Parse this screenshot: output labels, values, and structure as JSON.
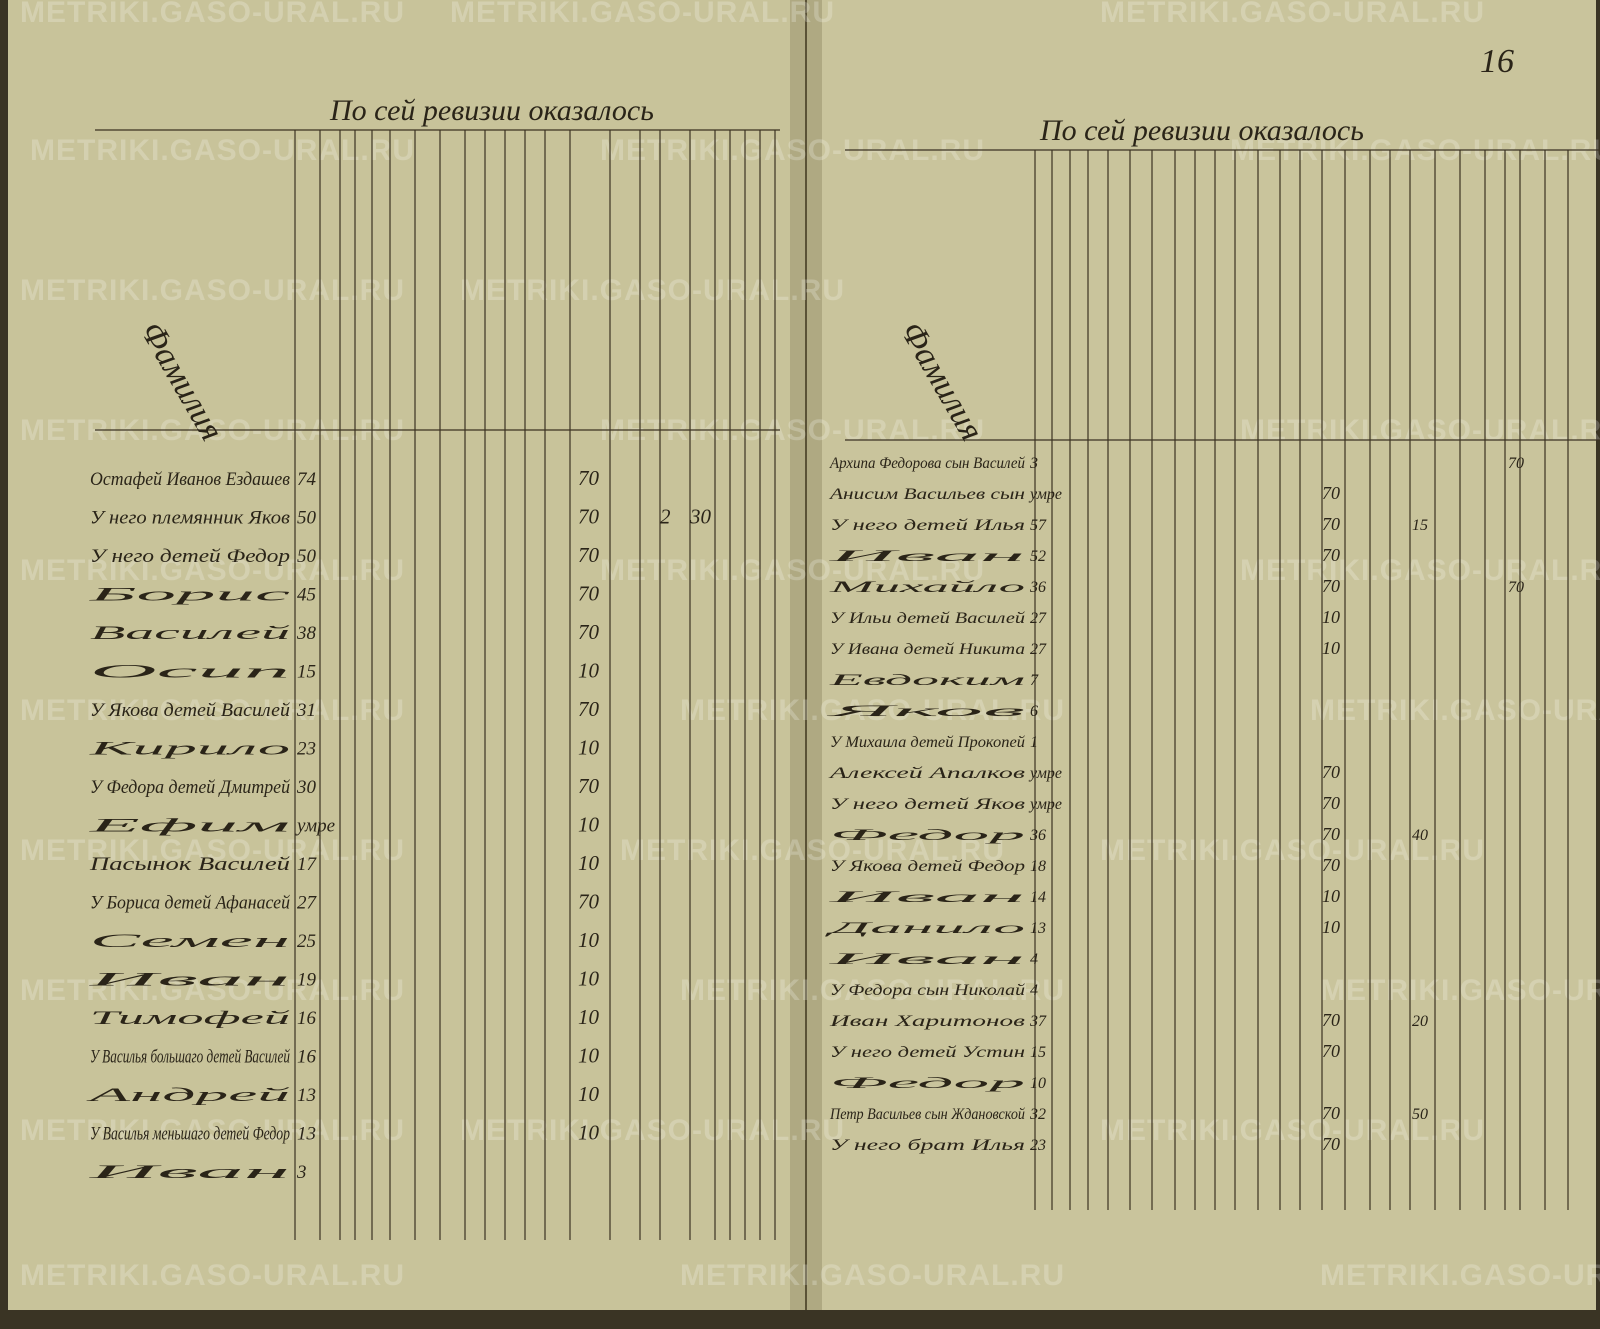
{
  "watermark": "METRIKI.GASO-URAL.RU",
  "page_number": "16",
  "left_page": {
    "title": "По сей ревизии оказалось",
    "name_header": "Фамилия",
    "rows": [
      {
        "name": "Остафей Иванов Ездашев",
        "age": "74",
        "tax": "70"
      },
      {
        "name": "У него племянник Яков",
        "age": "50",
        "tax": "70",
        "extra": [
          "2",
          "30"
        ]
      },
      {
        "name": "У него детей Федор",
        "age": "50",
        "tax": "70"
      },
      {
        "name": "Борис",
        "age": "45",
        "tax": "70"
      },
      {
        "name": "Василей",
        "age": "38",
        "tax": "70"
      },
      {
        "name": "Осип",
        "age": "15",
        "tax": "10"
      },
      {
        "name": "У Якова детей Василей",
        "age": "31",
        "tax": "70"
      },
      {
        "name": "Кирило",
        "age": "23",
        "tax": "10"
      },
      {
        "name": "У Федора детей Дмитрей",
        "age": "30",
        "tax": "70"
      },
      {
        "name": "Ефим",
        "age": "умре",
        "tax": "10"
      },
      {
        "name": "Пасынок Василей",
        "age": "17",
        "tax": "10"
      },
      {
        "name": "У Бориса детей Афанасей",
        "age": "27",
        "tax": "70"
      },
      {
        "name": "Семен",
        "age": "25",
        "tax": "10"
      },
      {
        "name": "Иван",
        "age": "19",
        "tax": "10"
      },
      {
        "name": "Тимофей",
        "age": "16",
        "tax": "10"
      },
      {
        "name": "У Василья большаго детей Василей",
        "age": "16",
        "tax": "10"
      },
      {
        "name": "Андрей",
        "age": "13",
        "tax": "10"
      },
      {
        "name": "У Василья меньшаго детей Федор",
        "age": "13",
        "tax": "10"
      },
      {
        "name": "Иван",
        "age": "3"
      }
    ]
  },
  "right_page": {
    "title": "По сей ревизии оказалось",
    "name_header": "Фамилия",
    "rows": [
      {
        "name": "Архипа Федорова сын Василей",
        "age": "3",
        "far": "70"
      },
      {
        "name": "Анисим Васильев сын",
        "age": "умре",
        "tax": "70"
      },
      {
        "name": "У него детей Илья",
        "age": "57",
        "tax": "70",
        "extra": "15"
      },
      {
        "name": "Иван",
        "age": "52",
        "tax": "70"
      },
      {
        "name": "Михайло",
        "age": "36",
        "tax": "70",
        "far": "70"
      },
      {
        "name": "У Ильи детей Василей",
        "age": "27",
        "tax": "10"
      },
      {
        "name": "У Ивана детей Никита",
        "age": "27",
        "tax": "10"
      },
      {
        "name": "Евдоким",
        "age": "7"
      },
      {
        "name": "Яков",
        "age": "6"
      },
      {
        "name": "У Михаила детей Прокопей",
        "age": "1"
      },
      {
        "name": "Алексей Апалков",
        "age": "умре",
        "tax": "70"
      },
      {
        "name": "У него детей Яков",
        "age": "умре",
        "tax": "70"
      },
      {
        "name": "Федор",
        "age": "36",
        "tax": "70",
        "extra": "40"
      },
      {
        "name": "У Якова детей Федор",
        "age": "18",
        "tax": "70"
      },
      {
        "name": "Иван",
        "age": "14",
        "tax": "10"
      },
      {
        "name": "Данило",
        "age": "13",
        "tax": "10"
      },
      {
        "name": "Иван",
        "age": "4"
      },
      {
        "name": "У Федора сын Николай",
        "age": "4"
      },
      {
        "name": "Иван Харитонов",
        "age": "37",
        "tax": "70",
        "extra": "20"
      },
      {
        "name": "У него детей Устин",
        "age": "15",
        "tax": "70"
      },
      {
        "name": "Федор",
        "age": "10"
      },
      {
        "name": "Петр Васильев сын Ждановской",
        "age": "32",
        "tax": "70",
        "extra": "50"
      },
      {
        "name": "У него брат Илья",
        "age": "23",
        "tax": "70"
      }
    ]
  }
}
